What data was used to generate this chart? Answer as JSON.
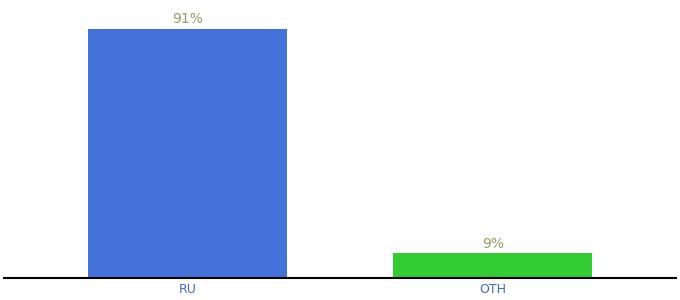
{
  "categories": [
    "RU",
    "OTH"
  ],
  "values": [
    91,
    9
  ],
  "bar_colors": [
    "#4472db",
    "#33cc33"
  ],
  "value_labels": [
    "91%",
    "9%"
  ],
  "label_fontsize": 10,
  "tick_fontsize": 9,
  "label_color": "#999966",
  "tick_color": "#4466cc",
  "background_color": "#ffffff",
  "ylim": [
    0,
    100
  ],
  "bar_width": 0.65
}
